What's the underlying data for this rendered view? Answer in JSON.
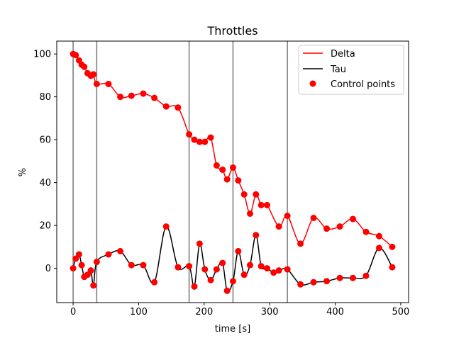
{
  "chart_data": {
    "type": "line",
    "title": "Throttles",
    "xlabel": "time [s]",
    "ylabel": "%",
    "xlim": [
      -25,
      512
    ],
    "ylim": [
      -16,
      106
    ],
    "xticks": [
      0,
      100,
      200,
      300,
      400,
      500
    ],
    "yticks": [
      0,
      20,
      40,
      60,
      80,
      100
    ],
    "grid": false,
    "legend_position": "top-right",
    "vertical_lines": [
      0,
      36,
      177,
      244,
      327
    ],
    "series": [
      {
        "name": "Delta",
        "color": "#ff0000",
        "x": [
          0,
          4,
          9,
          13,
          17,
          22,
          27,
          31,
          36,
          54,
          72,
          89,
          107,
          124,
          142,
          160,
          177,
          185,
          193,
          201,
          210,
          219,
          228,
          235,
          244,
          252,
          261,
          270,
          279,
          287,
          296,
          314,
          327,
          347,
          367,
          387,
          407,
          427,
          447,
          467,
          487
        ],
        "y": [
          100,
          99.5,
          97,
          95,
          94,
          91,
          89.8,
          90.5,
          86,
          86,
          80,
          80.5,
          81.5,
          79.5,
          75.5,
          75,
          62.5,
          60,
          59,
          59,
          61,
          48,
          46,
          41.5,
          47,
          41,
          34.5,
          25.5,
          34.5,
          29.5,
          29.5,
          19.5,
          24.5,
          11.5,
          23.5,
          18.5,
          19.5,
          23,
          17,
          15,
          10
        ]
      },
      {
        "name": "Tau",
        "color": "#000000",
        "x": [
          0,
          4,
          9,
          13,
          17,
          22,
          27,
          31,
          36,
          54,
          72,
          89,
          107,
          124,
          142,
          160,
          177,
          185,
          193,
          201,
          210,
          219,
          228,
          235,
          244,
          252,
          261,
          270,
          279,
          287,
          296,
          306,
          314,
          327,
          347,
          367,
          387,
          407,
          427,
          447,
          467,
          487
        ],
        "y": [
          0,
          4.5,
          6.5,
          1.5,
          -4,
          -3,
          -1,
          -8,
          3,
          6.5,
          8,
          1.5,
          1.5,
          -6.5,
          19.5,
          0.5,
          1,
          -8.5,
          11.5,
          -0.5,
          -5.5,
          -0.5,
          2.5,
          -10.5,
          -6,
          8,
          -3,
          1.5,
          15.5,
          1,
          0,
          -2,
          -1,
          -0.5,
          -7.5,
          -6.5,
          -6,
          -4.5,
          -4.5,
          -3.5,
          9.5,
          0.5
        ]
      }
    ],
    "markers": {
      "name": "Control points",
      "color": "#ff0000"
    }
  }
}
